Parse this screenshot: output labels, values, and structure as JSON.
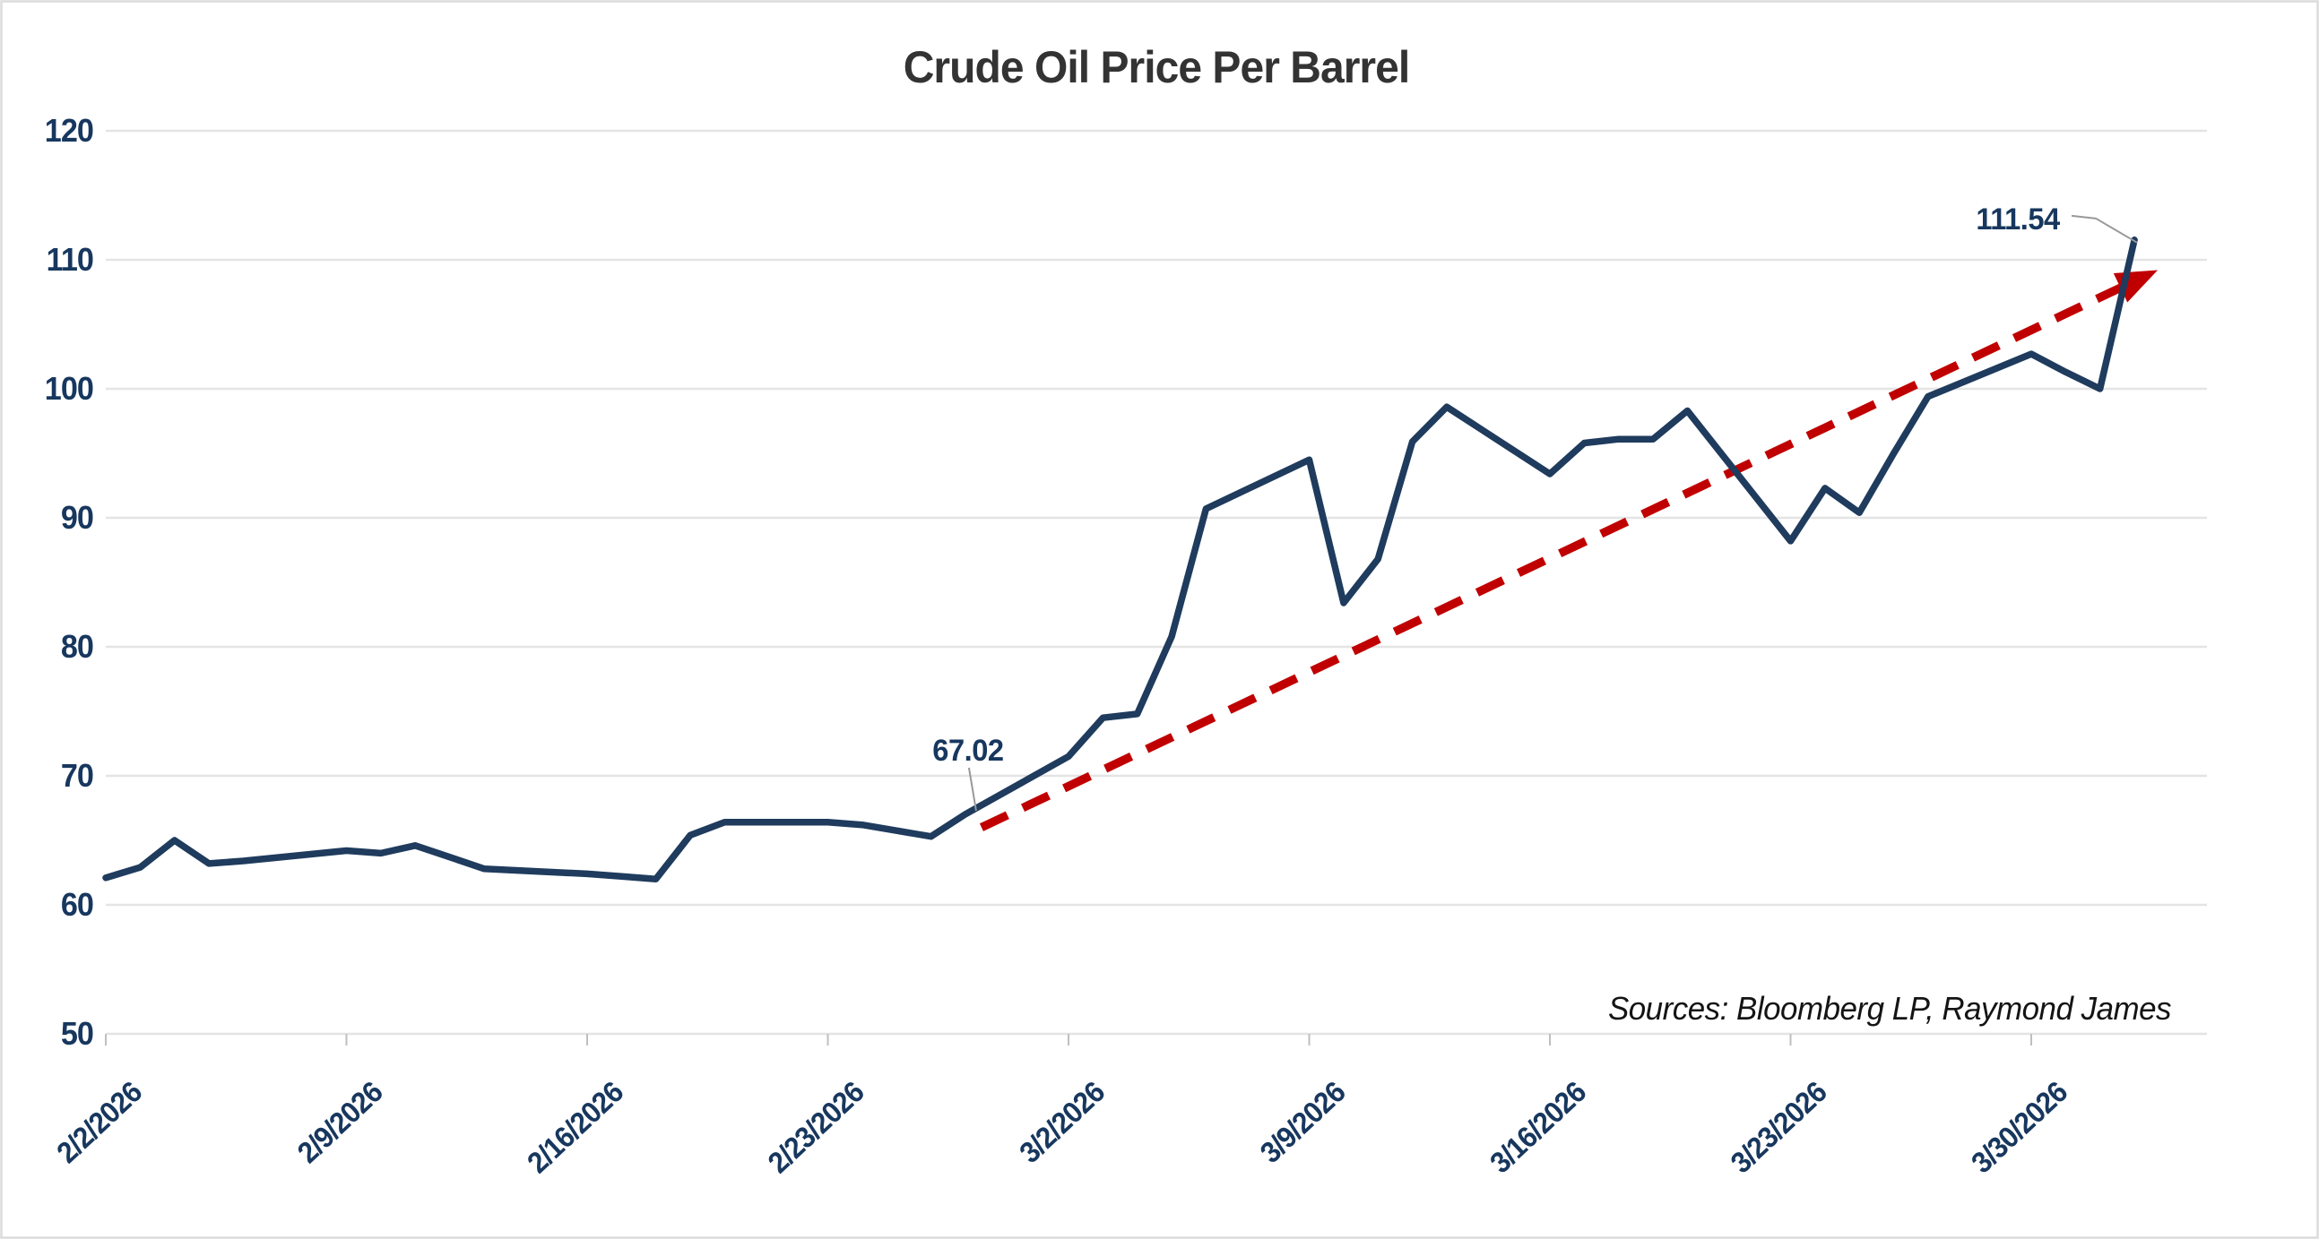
{
  "chart_data": {
    "type": "line",
    "title": "Crude Oil Price Per Barrel",
    "source_note": "Sources: Bloomberg LP, Raymond James",
    "xlabel": "",
    "ylabel": "",
    "ylim": [
      50,
      120
    ],
    "y_ticks": [
      120,
      110,
      100,
      90,
      80,
      70,
      60,
      50
    ],
    "x_tick_labels": [
      "2/2/2026",
      "2/9/2026",
      "2/16/2026",
      "2/23/2026",
      "3/2/2026",
      "3/9/2026",
      "3/16/2026",
      "3/23/2026",
      "3/30/2026"
    ],
    "grid": "horizontal-only",
    "legend": "none",
    "series": [
      {
        "name": "Crude oil price per barrel (USD)",
        "color": "#1f3b5d",
        "points": [
          {
            "d": "2/2/2026",
            "v": 62.1
          },
          {
            "d": "2/3/2026",
            "v": 62.9
          },
          {
            "d": "2/4/2026",
            "v": 65.0
          },
          {
            "d": "2/5/2026",
            "v": 63.2
          },
          {
            "d": "2/6/2026",
            "v": 63.4
          },
          {
            "d": "2/9/2026",
            "v": 64.2
          },
          {
            "d": "2/10/2026",
            "v": 64.0
          },
          {
            "d": "2/11/2026",
            "v": 64.6
          },
          {
            "d": "2/12/2026",
            "v": 63.7
          },
          {
            "d": "2/13/2026",
            "v": 62.8
          },
          {
            "d": "2/16/2026",
            "v": 62.4
          },
          {
            "d": "2/17/2026",
            "v": 62.2
          },
          {
            "d": "2/18/2026",
            "v": 62.0
          },
          {
            "d": "2/19/2026",
            "v": 65.4
          },
          {
            "d": "2/20/2026",
            "v": 66.4
          },
          {
            "d": "2/23/2026",
            "v": 66.4
          },
          {
            "d": "2/24/2026",
            "v": 66.2
          },
          {
            "d": "2/25/2026",
            "v": 65.75
          },
          {
            "d": "2/26/2026",
            "v": 65.3
          },
          {
            "d": "2/27/2026",
            "v": 67.02
          },
          {
            "d": "3/2/2026",
            "v": 71.5
          },
          {
            "d": "3/3/2026",
            "v": 74.5
          },
          {
            "d": "3/4/2026",
            "v": 74.8
          },
          {
            "d": "3/5/2026",
            "v": 80.8
          },
          {
            "d": "3/6/2026",
            "v": 90.7
          },
          {
            "d": "3/9/2026",
            "v": 94.5
          },
          {
            "d": "3/10/2026",
            "v": 83.4
          },
          {
            "d": "3/11/2026",
            "v": 86.8
          },
          {
            "d": "3/12/2026",
            "v": 95.9
          },
          {
            "d": "3/13/2026",
            "v": 98.6
          },
          {
            "d": "3/16/2026",
            "v": 93.4
          },
          {
            "d": "3/17/2026",
            "v": 95.8
          },
          {
            "d": "3/18/2026",
            "v": 96.1
          },
          {
            "d": "3/19/2026",
            "v": 96.1
          },
          {
            "d": "3/20/2026",
            "v": 98.3
          },
          {
            "d": "3/23/2026",
            "v": 88.2
          },
          {
            "d": "3/24/2026",
            "v": 92.3
          },
          {
            "d": "3/25/2026",
            "v": 90.4
          },
          {
            "d": "3/26/2026",
            "v": 95.0
          },
          {
            "d": "3/27/2026",
            "v": 99.4
          },
          {
            "d": "3/30/2026",
            "v": 102.7
          },
          {
            "d": "3/31/2026",
            "v": 101.3
          },
          {
            "d": "4/1/2026",
            "v": 100.0
          },
          {
            "d": "4/2/2026",
            "v": 111.54
          }
        ]
      }
    ],
    "trendline": {
      "name": "upward trend arrow",
      "color": "#c00000",
      "style": "dashed",
      "start": {
        "d": "2/27/2026",
        "v": 66.0
      },
      "end": {
        "d": "4/2/2026",
        "v": 109.2
      }
    },
    "annotations": [
      {
        "label": "67.02",
        "d": "2/27/2026",
        "v": 67.02
      },
      {
        "label": "111.54",
        "d": "4/2/2026",
        "v": 111.54
      }
    ]
  },
  "colors": {
    "line": "#1f3b5d",
    "trend": "#c00000",
    "axis_text": "#17375e",
    "title_text": "#333333",
    "gridline": "#e4e4e4",
    "tick": "#bfbfbf",
    "leader": "#999999",
    "source_text": "#141414",
    "frame": "#dcdcdc",
    "background": "#ffffff"
  }
}
